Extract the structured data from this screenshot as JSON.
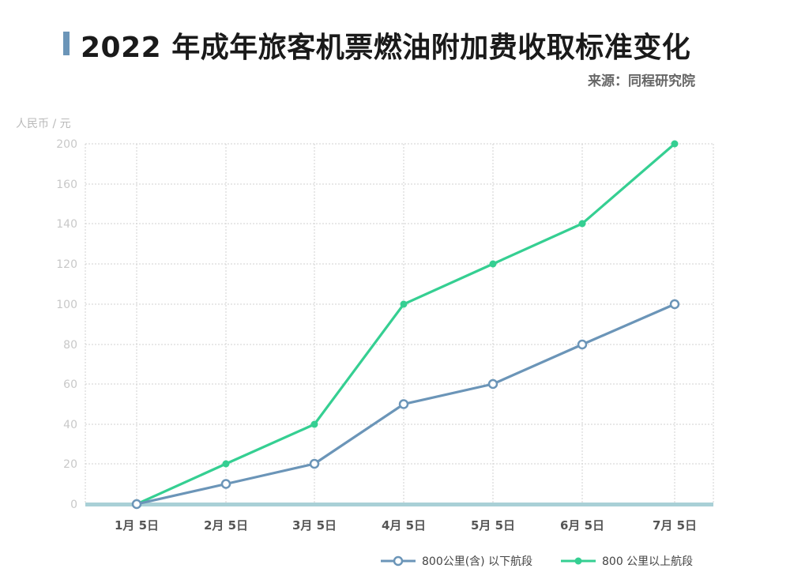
{
  "title": "2022 年成年旅客机票燃油附加费收取标准变化",
  "source": "来源：同程研究院",
  "colors": {
    "accent": "#6b95b8",
    "series_low": "#6b95b8",
    "series_high": "#35cf92",
    "baseline": "#a9d0d6",
    "grid": "#d0d0d0",
    "tick": "#c8c8c8"
  },
  "chart_data": {
    "type": "line",
    "title": "2022 年成年旅客机票燃油附加费收取标准变化",
    "ylabel": "人民币 / 元",
    "xlabel": "",
    "categories": [
      "1月 5日",
      "2月 5日",
      "3月 5日",
      "4月 5日",
      "5月 5日",
      "6月 5日",
      "7月 5日"
    ],
    "yticks": [
      0,
      20,
      40,
      60,
      80,
      100,
      120,
      140,
      160,
      200
    ],
    "grid": true,
    "legend_position": "bottom-right",
    "series": [
      {
        "name": "800公里(含) 以下航段",
        "values": [
          0,
          10,
          20,
          50,
          60,
          80,
          100
        ],
        "marker": "hollow-circle"
      },
      {
        "name": "800 公里以上航段",
        "values": [
          0,
          20,
          40,
          100,
          120,
          140,
          200
        ],
        "marker": "filled-circle"
      }
    ]
  }
}
